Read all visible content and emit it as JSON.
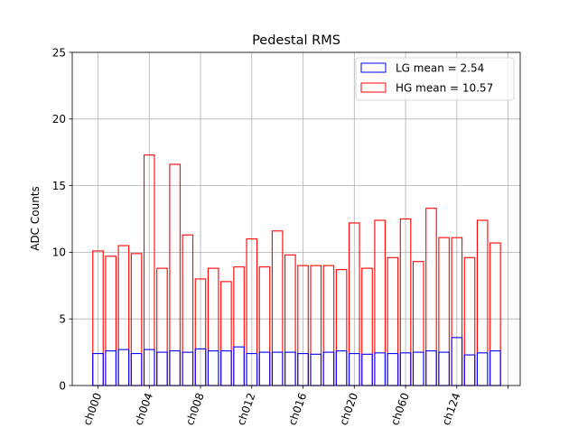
{
  "chart_data": {
    "type": "bar",
    "title": "Pedestal RMS",
    "xlabel": "",
    "ylabel": "ADC Counts",
    "ylim": [
      0,
      25
    ],
    "yticks": [
      0,
      5,
      10,
      15,
      20,
      25
    ],
    "xticks": [
      {
        "index": 0,
        "label": "ch000"
      },
      {
        "index": 4,
        "label": "ch004"
      },
      {
        "index": 8,
        "label": "ch008"
      },
      {
        "index": 12,
        "label": "ch012"
      },
      {
        "index": 16,
        "label": "ch016"
      },
      {
        "index": 20,
        "label": "ch020"
      },
      {
        "index": 24,
        "label": "ch060"
      },
      {
        "index": 28,
        "label": "ch124"
      },
      {
        "index": 32,
        "label": ""
      }
    ],
    "grid": true,
    "legend_position": "top-right",
    "colors": {
      "lg": "#0000ff",
      "hg": "#ff0000",
      "grid": "#b0b0b0"
    },
    "series": [
      {
        "name": "LG mean = 2.54",
        "key": "lg",
        "values": [
          2.4,
          2.6,
          2.7,
          2.4,
          2.7,
          2.5,
          2.6,
          2.5,
          2.75,
          2.6,
          2.6,
          2.9,
          2.4,
          2.5,
          2.5,
          2.5,
          2.4,
          2.35,
          2.5,
          2.6,
          2.4,
          2.35,
          2.45,
          2.4,
          2.45,
          2.5,
          2.6,
          2.5,
          3.6,
          2.3,
          2.45,
          2.6
        ]
      },
      {
        "name": "HG mean = 10.57",
        "key": "hg",
        "values": [
          10.1,
          9.7,
          10.5,
          9.9,
          17.3,
          8.8,
          16.6,
          11.3,
          8.0,
          8.8,
          7.8,
          8.9,
          11.0,
          8.9,
          11.6,
          9.8,
          9.0,
          9.0,
          9.0,
          8.7,
          12.2,
          8.8,
          12.4,
          9.6,
          12.5,
          9.3,
          13.3,
          11.1,
          11.1,
          9.6,
          12.4,
          10.7
        ]
      }
    ]
  }
}
